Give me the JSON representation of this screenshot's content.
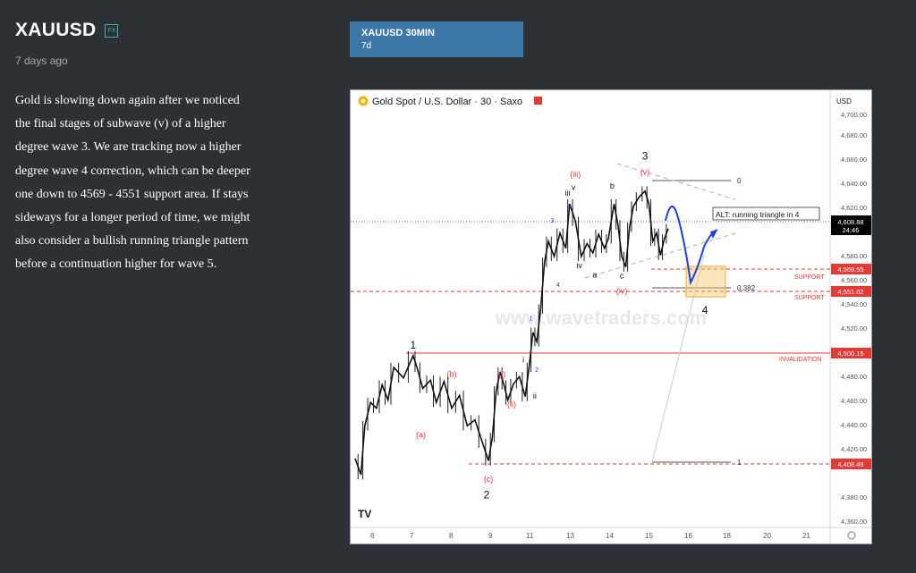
{
  "header": {
    "symbol": "XAUUSD",
    "badge": "FX",
    "posted": "7 days ago"
  },
  "description": [
    "Gold is slowing down again after we noticed",
    "the final stages of subwave (v) of a higher",
    "degree wave 3. We are tracking now a higher",
    "degree wave 4 correction, which can be deeper",
    "one down to 4569 - 4551 support area. If stays",
    "sideways for a longer period of time, we might",
    "also consider a bullish running triangle pattern",
    "before a continuation higher for wave 5."
  ],
  "tab": {
    "title": "XAUUSD 30MIN",
    "subtitle": "7d"
  },
  "chart": {
    "symbol_line": "Gold Spot / U.S. Dollar · 30 · Saxo",
    "currency": "USD",
    "watermark": "www.wavetraders.com",
    "tv_logo": "TV",
    "colors": {
      "up": "#111111",
      "red": "#e53935",
      "blue": "#1e40d8",
      "fill": "#f7c66b"
    },
    "price_tags": {
      "current": "4,608.88",
      "countdown": "24:46",
      "support1": "4,569.55",
      "support2": "4,551.02",
      "invalidation": "4,500.15",
      "low": "4,408.49"
    },
    "line_labels": {
      "support": "SUPPORT",
      "invalidation": "INVALIDATION"
    },
    "fib": {
      "zero": "0",
      "mid": "0.382",
      "one": "1"
    },
    "alt_box": "ALT: running triangle in 4"
  },
  "chart_data": {
    "type": "line",
    "title": "Gold Spot / U.S. Dollar · 30 · Saxo",
    "y_ticks": [
      "4,700.00",
      "4,680.00",
      "4,660.00",
      "4,640.00",
      "4,620.00",
      "4,580.00",
      "4,560.00",
      "4,540.00",
      "4,520.00",
      "4,480.00",
      "4,460.00",
      "4,440.00",
      "4,420.00",
      "4,380.00",
      "4,360.00"
    ],
    "x_ticks": [
      "6",
      "7",
      "8",
      "9",
      "11",
      "13",
      "14",
      "15",
      "16",
      "18",
      "20",
      "21"
    ],
    "ylim": [
      4356,
      4712
    ],
    "series": [
      {
        "values": [
          [
            0,
            4412
          ],
          [
            0.3,
            4398
          ],
          [
            0.5,
            4440
          ],
          [
            0.8,
            4460
          ],
          [
            1.1,
            4455
          ],
          [
            1.4,
            4475
          ],
          [
            1.7,
            4462
          ],
          [
            2.0,
            4490
          ],
          [
            2.5,
            4481
          ],
          [
            3.0,
            4500
          ],
          [
            3.2,
            4490
          ],
          [
            3.5,
            4472
          ],
          [
            3.9,
            4479
          ],
          [
            4.2,
            4460
          ],
          [
            4.6,
            4478
          ],
          [
            5.0,
            4455
          ],
          [
            5.4,
            4466
          ],
          [
            5.8,
            4440
          ],
          [
            6.2,
            4445
          ],
          [
            6.6,
            4425
          ],
          [
            6.9,
            4410
          ],
          [
            7.1,
            4430
          ],
          [
            7.3,
            4470
          ],
          [
            7.5,
            4486
          ],
          [
            7.7,
            4475
          ],
          [
            7.9,
            4462
          ],
          [
            8.2,
            4476
          ],
          [
            8.5,
            4482
          ],
          [
            8.8,
            4465
          ],
          [
            9.0,
            4490
          ],
          [
            9.2,
            4520
          ],
          [
            9.4,
            4512
          ],
          [
            9.6,
            4540
          ],
          [
            9.8,
            4580
          ],
          [
            10.0,
            4598
          ],
          [
            10.3,
            4585
          ],
          [
            10.6,
            4605
          ],
          [
            10.9,
            4592
          ],
          [
            11.1,
            4630
          ],
          [
            11.4,
            4615
          ],
          [
            11.7,
            4585
          ],
          [
            12.0,
            4596
          ],
          [
            12.3,
            4588
          ],
          [
            12.6,
            4604
          ],
          [
            12.9,
            4592
          ],
          [
            13.1,
            4600
          ],
          [
            13.4,
            4630
          ],
          [
            13.6,
            4612
          ],
          [
            13.8,
            4585
          ],
          [
            14.0,
            4576
          ],
          [
            14.2,
            4610
          ],
          [
            14.4,
            4628
          ],
          [
            14.7,
            4636
          ],
          [
            15.0,
            4641
          ],
          [
            15.2,
            4630
          ],
          [
            15.4,
            4598
          ],
          [
            15.6,
            4605
          ],
          [
            15.8,
            4586
          ],
          [
            16.0,
            4600
          ],
          [
            16.2,
            4608.88
          ]
        ]
      }
    ],
    "horizontal_lines": [
      {
        "label": "SUPPORT",
        "value": 4569.55
      },
      {
        "label": "SUPPORT",
        "value": 4551.02
      },
      {
        "label": "INVALIDATION",
        "value": 4500.15
      },
      {
        "label": "",
        "value": 4408.49
      }
    ],
    "wave_labels": [
      {
        "text": "1",
        "x": 3.0,
        "y": 4506,
        "color": "black"
      },
      {
        "text": "2",
        "x": 6.8,
        "y": 4378,
        "color": "black"
      },
      {
        "text": "3",
        "x": 15.0,
        "y": 4668,
        "color": "black"
      },
      {
        "text": "4",
        "x": 18.1,
        "y": 4536,
        "color": "black"
      },
      {
        "text": "(a)",
        "x": 3.4,
        "y": 4430,
        "color": "red"
      },
      {
        "text": "(b)",
        "x": 5.0,
        "y": 4482,
        "color": "red"
      },
      {
        "text": "(c)",
        "x": 6.9,
        "y": 4392,
        "color": "red"
      },
      {
        "text": "(i)",
        "x": 7.6,
        "y": 4482,
        "color": "red"
      },
      {
        "text": "(ii)",
        "x": 8.1,
        "y": 4456,
        "color": "red"
      },
      {
        "text": "(iii)",
        "x": 11.4,
        "y": 4653,
        "color": "red"
      },
      {
        "text": "(iv)",
        "x": 13.8,
        "y": 4553,
        "color": "red"
      },
      {
        "text": "(v)",
        "x": 15.0,
        "y": 4655,
        "color": "red"
      },
      {
        "text": "i",
        "x": 8.7,
        "y": 4494,
        "color": "black"
      },
      {
        "text": "ii",
        "x": 9.3,
        "y": 4463,
        "color": "black"
      },
      {
        "text": "iii",
        "x": 11.0,
        "y": 4637,
        "color": "black"
      },
      {
        "text": "iv",
        "x": 11.6,
        "y": 4575,
        "color": "black"
      },
      {
        "text": "v",
        "x": 11.3,
        "y": 4642,
        "color": "black"
      },
      {
        "text": "a",
        "x": 12.4,
        "y": 4567,
        "color": "black"
      },
      {
        "text": "b",
        "x": 13.3,
        "y": 4643,
        "color": "black"
      },
      {
        "text": "c",
        "x": 13.8,
        "y": 4566,
        "color": "black"
      },
      {
        "text": "1",
        "x": 9.1,
        "y": 4530,
        "color": "blue"
      },
      {
        "text": "2",
        "x": 9.4,
        "y": 4486,
        "color": "blue"
      },
      {
        "text": "3",
        "x": 10.2,
        "y": 4614,
        "color": "blue"
      },
      {
        "text": "4",
        "x": 10.5,
        "y": 4559,
        "color": "blue"
      },
      {
        "text": "5",
        "x": 11.1,
        "y": 4626,
        "color": "blue"
      }
    ],
    "grid": false
  }
}
